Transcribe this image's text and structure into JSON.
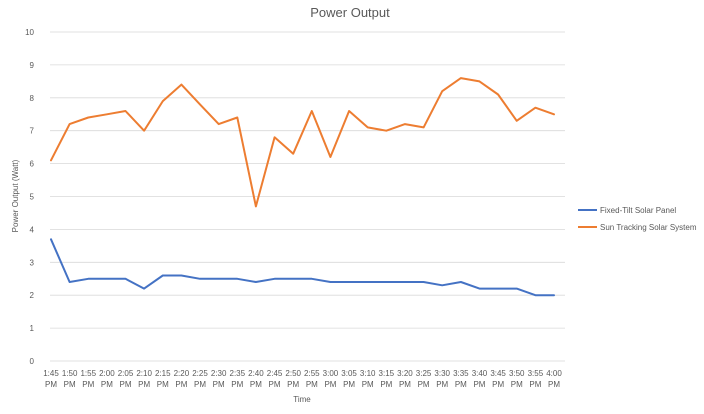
{
  "chart_data": {
    "type": "line",
    "title": "Power Output",
    "xlabel": "Time",
    "ylabel": "Power Output (Watt)",
    "ylim": [
      0,
      10
    ],
    "yticks": [
      0,
      1,
      2,
      3,
      4,
      5,
      6,
      7,
      8,
      9,
      10
    ],
    "grid": true,
    "legend_position": "right",
    "categories": [
      "1:45 PM",
      "1:50 PM",
      "1:55 PM",
      "2:00 PM",
      "2:05 PM",
      "2:10 PM",
      "2:15 PM",
      "2:20 PM",
      "2:25 PM",
      "2:30 PM",
      "2:35 PM",
      "2:40 PM",
      "2:45 PM",
      "2:50 PM",
      "2:55 PM",
      "3:00 PM",
      "3:05 PM",
      "3:10 PM",
      "3:15 PM",
      "3:20 PM",
      "3:25 PM",
      "3:30 PM",
      "3:35 PM",
      "3:40 PM",
      "3:45 PM",
      "3:50 PM",
      "3:55 PM",
      "4:00 PM"
    ],
    "series": [
      {
        "name": "Fixed-Tilt Solar Panel",
        "color": "#4472C4",
        "values": [
          3.7,
          2.4,
          2.5,
          2.5,
          2.5,
          2.2,
          2.6,
          2.6,
          2.5,
          2.5,
          2.5,
          2.4,
          2.5,
          2.5,
          2.5,
          2.4,
          2.4,
          2.4,
          2.4,
          2.4,
          2.4,
          2.3,
          2.4,
          2.2,
          2.2,
          2.2,
          2.0,
          2.0
        ]
      },
      {
        "name": "Sun Tracking Solar System",
        "color": "#ED7D31",
        "values": [
          6.1,
          7.2,
          7.4,
          7.5,
          7.6,
          7.0,
          7.9,
          8.4,
          7.8,
          7.2,
          7.4,
          4.7,
          6.8,
          6.3,
          7.6,
          6.2,
          7.6,
          7.1,
          7.0,
          7.2,
          7.1,
          8.2,
          8.6,
          8.5,
          8.1,
          7.3,
          7.7,
          7.5
        ]
      }
    ]
  }
}
